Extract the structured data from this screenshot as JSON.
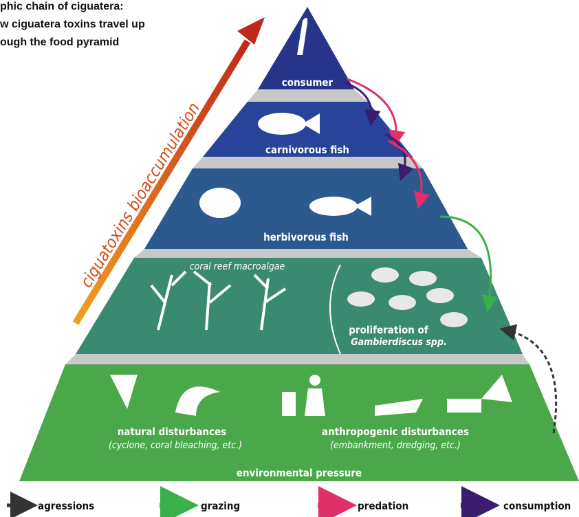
{
  "title": [
    "phic chain of ciguatera:",
    "w ciguatera toxins travel up",
    "ough the food pyramid"
  ],
  "side_arrow_label": "ciguatoxins bioaccumulation",
  "levels": {
    "consumer": "consumer",
    "carnivorous": "carnivorous fish",
    "herbivorous": "herbivorous fish",
    "macroalgae": "coral reef macroalgae",
    "gambierdiscus": [
      "proliferation of",
      "Gambierdiscus spp."
    ],
    "natural": [
      "natural disturbances",
      "(cyclone, coral bleaching, etc.)"
    ],
    "anthropogenic": [
      "anthropogenic disturbances",
      "(embankment, dredging, etc.)"
    ],
    "environment": "environmental pressure"
  },
  "legend": [
    "agressions",
    "grazing",
    "predation",
    "consumption"
  ]
}
